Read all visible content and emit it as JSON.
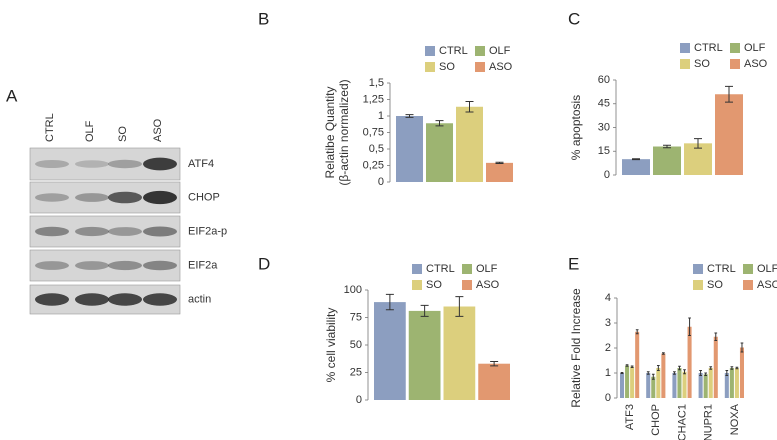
{
  "blot": {
    "panel": "A",
    "lanes": [
      "CTRL",
      "OLF",
      "SO",
      "ASO"
    ],
    "proteins": [
      "ATF4",
      "CHOP",
      "EIF2a-p",
      "EIF2a",
      "actin"
    ]
  },
  "chart_data": [
    {
      "panel": "B",
      "type": "bar",
      "ylabel": [
        "Relatibe Quantity",
        "(β-actin normalized)"
      ],
      "categories": [
        "CTRL",
        "OLF",
        "SO",
        "ASO"
      ],
      "colors": [
        "#8c9ec0",
        "#9db471",
        "#dccf7d",
        "#e29870"
      ],
      "values": [
        1.0,
        0.89,
        1.14,
        0.29
      ],
      "errors": [
        0.02,
        0.04,
        0.08,
        0.01
      ],
      "ylim": [
        0,
        1.5
      ],
      "yticks": [
        0,
        {
          "value": 0.25,
          "label": "0,25"
        },
        {
          "value": 0.5,
          "label": "0,5"
        },
        {
          "value": 0.75,
          "label": "0,75"
        },
        1,
        {
          "value": 1.25,
          "label": "1,25"
        },
        {
          "value": 1.5,
          "label": "1,5"
        }
      ]
    },
    {
      "panel": "C",
      "type": "bar",
      "ylabel": [
        "% apoptosis"
      ],
      "categories": [
        "CTRL",
        "OLF",
        "SO",
        "ASO"
      ],
      "colors": [
        "#8c9ec0",
        "#9db471",
        "#dccf7d",
        "#e29870"
      ],
      "values": [
        10,
        18,
        20,
        51
      ],
      "errors": [
        0.3,
        0.8,
        3,
        5
      ],
      "ylim": [
        0,
        60
      ],
      "yticks": [
        0,
        15,
        30,
        45,
        60
      ]
    },
    {
      "panel": "D",
      "type": "bar",
      "ylabel": [
        "% cell viability"
      ],
      "categories": [
        "CTRL",
        "OLF",
        "SO",
        "ASO"
      ],
      "colors": [
        "#8c9ec0",
        "#9db471",
        "#dccf7d",
        "#e29870"
      ],
      "values": [
        89,
        81,
        85,
        33
      ],
      "errors": [
        7,
        5,
        9,
        2
      ],
      "ylim": [
        0,
        100
      ],
      "yticks": [
        0,
        25,
        50,
        75,
        100
      ]
    },
    {
      "panel": "E",
      "type": "grouped_bar",
      "ylabel": [
        "Relative Fold Increase"
      ],
      "categories": [
        "ATF3",
        "CHOP",
        "CHAC1",
        "NUPR1",
        "NOXA"
      ],
      "series": [
        {
          "name": "CTRL",
          "color": "#8c9ec0",
          "values": [
            1,
            1,
            1,
            1,
            1
          ],
          "errors": [
            0.02,
            0.05,
            0.05,
            0.1,
            0.1
          ]
        },
        {
          "name": "OLF",
          "color": "#9db471",
          "values": [
            1.3,
            0.85,
            1.2,
            0.95,
            1.2
          ],
          "errors": [
            0.03,
            0.1,
            0.07,
            0.05,
            0.05
          ]
        },
        {
          "name": "SO",
          "color": "#dccf7d",
          "values": [
            1.25,
            1.2,
            1.05,
            1.2,
            1.2
          ],
          "errors": [
            0.03,
            0.1,
            0.08,
            0.05,
            0.03
          ]
        },
        {
          "name": "ASO",
          "color": "#e29870",
          "values": [
            2.65,
            1.78,
            2.85,
            2.45,
            2.02
          ],
          "errors": [
            0.08,
            0.03,
            0.35,
            0.15,
            0.18
          ]
        }
      ],
      "ylim": [
        0,
        4
      ],
      "yticks": [
        0,
        1,
        2,
        3,
        4
      ]
    }
  ]
}
